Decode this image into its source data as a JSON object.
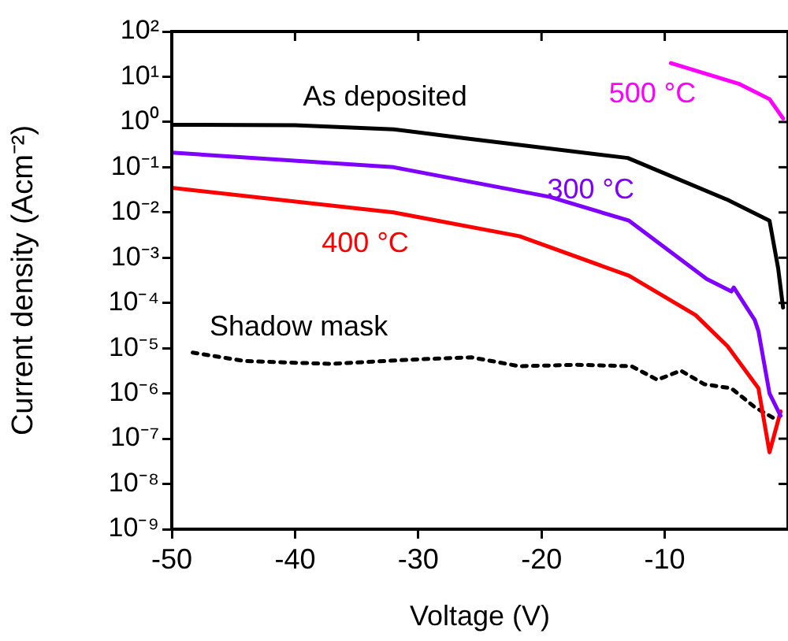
{
  "chart_data": {
    "type": "line",
    "xlabel": "Voltage (V)",
    "ylabel": "Current density (Acm⁻²)",
    "log": "y",
    "grid": false,
    "legend": false,
    "marker": "none",
    "xlim": [
      -50,
      0
    ],
    "xticks": [
      -50,
      -40,
      -30,
      -20,
      -10
    ],
    "ylim": [
      1e-09,
      100
    ],
    "yticks": [
      {
        "value": 100,
        "label": "10²"
      },
      {
        "value": 10,
        "label": "10¹"
      },
      {
        "value": 1,
        "label": "10⁰"
      },
      {
        "value": 0.1,
        "label": "10⁻¹"
      },
      {
        "value": 0.01,
        "label": "10⁻²"
      },
      {
        "value": 0.001,
        "label": "10⁻³"
      },
      {
        "value": 0.0001,
        "label": "10⁻⁴"
      },
      {
        "value": 1e-05,
        "label": "10⁻⁵"
      },
      {
        "value": 1e-06,
        "label": "10⁻⁶"
      },
      {
        "value": 1e-07,
        "label": "10⁻⁷"
      },
      {
        "value": 1e-08,
        "label": "10⁻⁸"
      },
      {
        "value": 1e-09,
        "label": "10⁻⁹"
      }
    ],
    "series": [
      {
        "name": "As deposited",
        "color": "#000000",
        "line_style": "solid",
        "x": [
          -50,
          -40,
          -32,
          -26,
          -13,
          -4.9,
          -1.5,
          -0.8,
          -0.4
        ],
        "values": [
          0.87,
          0.85,
          0.69,
          0.43,
          0.16,
          0.019,
          0.0066,
          0.00059,
          7.9e-05
        ]
      },
      {
        "name": "500 °C",
        "color": "#ff00ff",
        "line_style": "solid",
        "x": [
          -9.5,
          -4,
          -1.5,
          -0.4
        ],
        "values": [
          20,
          7,
          3.2,
          1.2
        ]
      },
      {
        "name": "300 °C",
        "color": "#7f00ff",
        "line_style": "solid",
        "x": [
          -50,
          -32,
          -19.3,
          -12.9,
          -6.6,
          -4.6,
          -4.4,
          -2.7,
          -2.4,
          -1.5,
          -0.6
        ],
        "values": [
          0.21,
          0.1,
          0.022,
          0.0066,
          0.00034,
          0.00018,
          0.00022,
          4.2e-05,
          2.4e-05,
          1e-06,
          3.2e-07
        ]
      },
      {
        "name": "400 °C",
        "color": "#ff0000",
        "line_style": "solid",
        "x": [
          -50,
          -32,
          -21.8,
          -12.9,
          -7.5,
          -4.9,
          -2.4,
          -1.5,
          -0.6
        ],
        "values": [
          0.035,
          0.01,
          0.003,
          0.0004,
          5.4e-05,
          1.1e-05,
          1.3e-06,
          5e-08,
          4e-07
        ]
      },
      {
        "name": "Shadow mask",
        "color": "#000000",
        "line_style": "dotted",
        "x": [
          -48.3,
          -44.1,
          -37.1,
          -30.5,
          -25.7,
          -21.8,
          -17.1,
          -12.7,
          -10.6,
          -8.7,
          -6.8,
          -4.6,
          -2.7,
          -0.8
        ],
        "values": [
          8e-06,
          5.2e-06,
          4.5e-06,
          5.6e-06,
          6.3e-06,
          4e-06,
          4.3e-06,
          4e-06,
          2e-06,
          3.2e-06,
          1.6e-06,
          1.3e-06,
          5e-07,
          2.5e-07
        ]
      }
    ]
  }
}
